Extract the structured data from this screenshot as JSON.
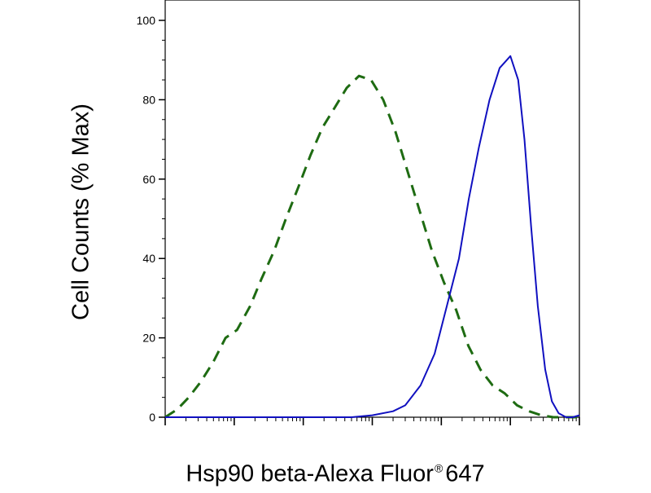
{
  "chart_data": {
    "type": "line",
    "xlabel": "Hsp90 beta-Alexa Fluor",
    "xlabel_suffix": "647",
    "xlabel_mark": "®",
    "ylabel": "Cell Counts (% Max)",
    "xscale": "log",
    "xlim": [
      1,
      1000000
    ],
    "ylim": [
      0,
      100
    ],
    "yticks": [
      0,
      20,
      40,
      60,
      80,
      100
    ],
    "ytick_labels": [
      "0",
      "20",
      "40",
      "60",
      "80",
      "100"
    ],
    "grid": false,
    "series": [
      {
        "style": "dashed",
        "color": "#1e6b12",
        "x": [
          1,
          1.5,
          2.2,
          3.3,
          5,
          7.5,
          11,
          17,
          25,
          38,
          56,
          85,
          127,
          190,
          285,
          427,
          640,
          960,
          1440,
          2160,
          3240,
          4860,
          7290,
          10900,
          16400,
          24600,
          36900,
          55400,
          83000,
          125000,
          187000,
          281000,
          420000,
          630000,
          1000000
        ],
        "y": [
          0,
          2,
          5,
          9,
          14,
          20,
          22,
          28,
          35,
          42,
          50,
          58,
          66,
          73,
          78,
          83,
          86,
          85,
          80,
          72,
          62,
          52,
          42,
          34,
          27,
          18,
          12,
          8,
          6,
          3,
          1.5,
          0.5,
          0,
          0,
          0
        ]
      },
      {
        "style": "solid",
        "color": "#1010c0",
        "x": [
          1,
          500,
          1000,
          2000,
          3000,
          5000,
          8000,
          12000,
          18000,
          25000,
          35000,
          50000,
          70000,
          100000,
          130000,
          160000,
          200000,
          250000,
          320000,
          400000,
          500000,
          640000,
          800000,
          1000000
        ],
        "y": [
          0,
          0,
          0.5,
          1.5,
          3,
          8,
          16,
          28,
          40,
          55,
          68,
          80,
          88,
          91,
          85,
          70,
          48,
          28,
          12,
          4,
          1,
          0,
          0,
          0.5
        ]
      }
    ]
  }
}
